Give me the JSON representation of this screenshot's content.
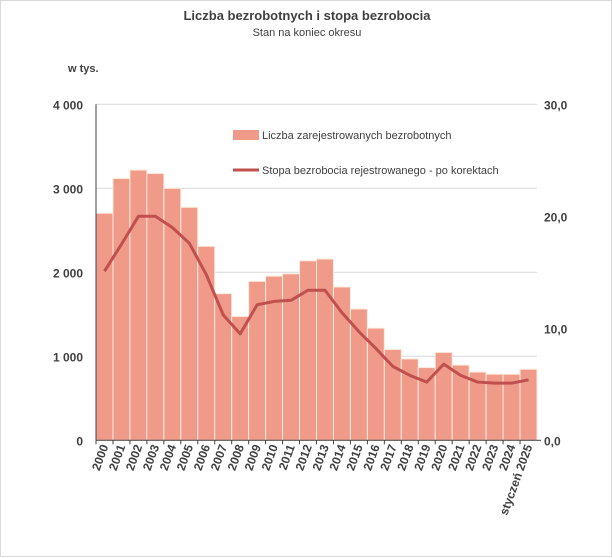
{
  "chart_data": {
    "type": "bar+line",
    "title": "Liczba bezrobotnych i stopa bezrobocia",
    "subtitle": "Stan na koniec okresu",
    "ylabel_left": "w tys.",
    "ylim_left": [
      0,
      4000
    ],
    "ylim_right": [
      0,
      30
    ],
    "yticks_left": [
      "0",
      "1 000",
      "2 000",
      "3 000",
      "4 000"
    ],
    "yticks_right": [
      "0,0",
      "10,0",
      "20,0",
      "30,0"
    ],
    "grid": true,
    "legend_placement": "top-right",
    "categories": [
      "2000",
      "2001",
      "2002",
      "2003",
      "2004",
      "2005",
      "2006",
      "2007",
      "2008",
      "2009",
      "2010",
      "2011",
      "2012",
      "2013",
      "2014",
      "2015",
      "2016",
      "2017",
      "2018",
      "2019",
      "2020",
      "2021",
      "2022",
      "2023",
      "2024",
      "styczeń 2025"
    ],
    "series": [
      {
        "name": "Liczba zarejestrowanych bezrobotnych",
        "type": "bar",
        "axis": "left",
        "color": "#f09a8a",
        "values": [
          2702,
          3116,
          3217,
          3176,
          2999,
          2773,
          2309,
          1746,
          1474,
          1892,
          1954,
          1982,
          2137,
          2158,
          1825,
          1563,
          1335,
          1082,
          969,
          866,
          1046,
          895,
          812,
          787,
          786,
          846
        ]
      },
      {
        "name": "Stopa bezrobocia rejestrowanego - po korektach",
        "type": "line",
        "axis": "right",
        "color": "#c0504d",
        "values": [
          15.1,
          17.5,
          20.0,
          20.0,
          19.0,
          17.6,
          14.8,
          11.2,
          9.5,
          12.1,
          12.4,
          12.5,
          13.4,
          13.4,
          11.4,
          9.7,
          8.2,
          6.6,
          5.8,
          5.2,
          6.8,
          5.8,
          5.2,
          5.1,
          5.1,
          5.4
        ]
      }
    ]
  }
}
